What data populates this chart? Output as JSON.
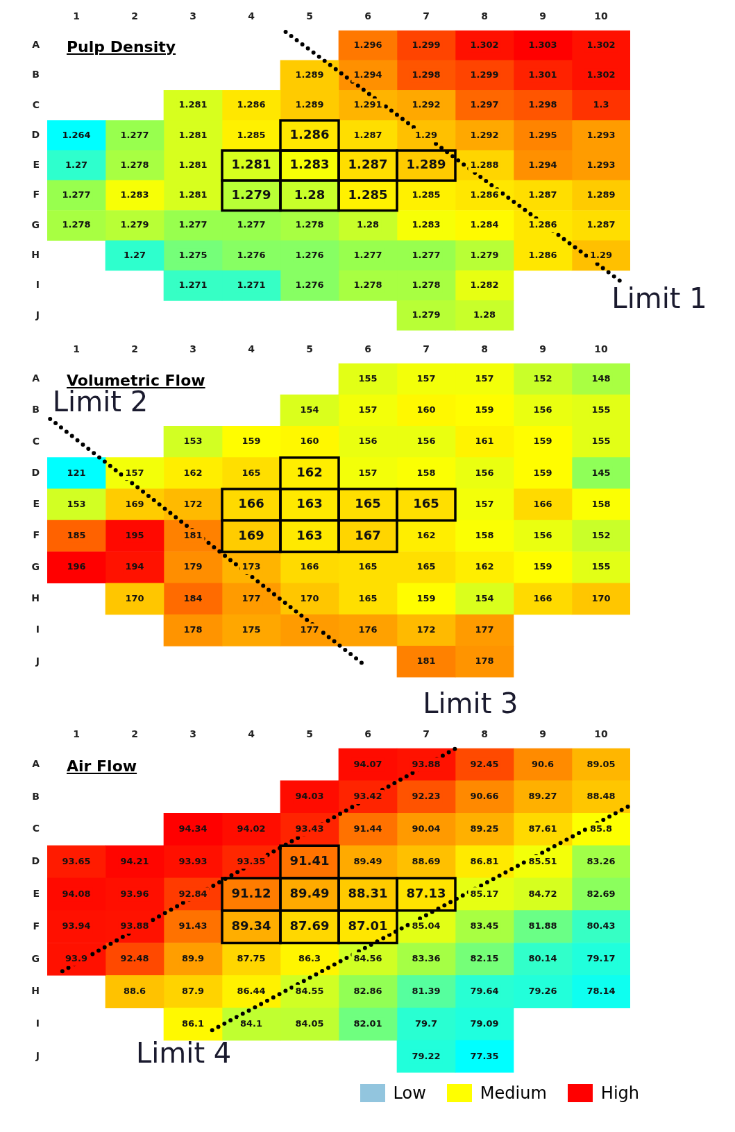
{
  "chart_data": [
    {
      "type": "heatmap",
      "title": "Pulp Density",
      "data_labels": true,
      "categories": [
        "1",
        "2",
        "3",
        "4",
        "5",
        "6",
        "7",
        "8",
        "9",
        "10"
      ],
      "y_categories": [
        "A",
        "B",
        "C",
        "D",
        "E",
        "F",
        "G",
        "H",
        "I",
        "J"
      ],
      "cells": [
        [
          null,
          null,
          null,
          null,
          null,
          1.296,
          1.299,
          1.302,
          1.303,
          1.302
        ],
        [
          null,
          null,
          null,
          null,
          1.289,
          1.294,
          1.298,
          1.299,
          1.301,
          1.302
        ],
        [
          null,
          null,
          1.281,
          1.286,
          1.289,
          1.291,
          1.292,
          1.297,
          1.298,
          1.3
        ],
        [
          1.264,
          1.277,
          1.281,
          1.285,
          1.286,
          1.287,
          1.29,
          1.292,
          1.295,
          1.293
        ],
        [
          1.27,
          1.278,
          1.281,
          1.281,
          1.283,
          1.287,
          1.289,
          1.288,
          1.294,
          1.293
        ],
        [
          1.277,
          1.283,
          1.281,
          1.279,
          1.28,
          1.285,
          1.285,
          1.286,
          1.287,
          1.289
        ],
        [
          1.278,
          1.279,
          1.277,
          1.277,
          1.278,
          1.28,
          1.283,
          1.284,
          1.286,
          1.287
        ],
        [
          null,
          1.27,
          1.275,
          1.276,
          1.276,
          1.277,
          1.277,
          1.279,
          1.286,
          1.29
        ],
        [
          null,
          null,
          1.271,
          1.271,
          1.276,
          1.278,
          1.278,
          1.282,
          null,
          null
        ],
        [
          null,
          null,
          null,
          null,
          null,
          null,
          1.279,
          1.28,
          null,
          null
        ]
      ],
      "annotations": [
        "Limit 1"
      ]
    },
    {
      "type": "heatmap",
      "title": "Volumetric Flow",
      "data_labels": true,
      "categories": [
        "1",
        "2",
        "3",
        "4",
        "5",
        "6",
        "7",
        "8",
        "9",
        "10"
      ],
      "y_categories": [
        "A",
        "B",
        "C",
        "D",
        "E",
        "F",
        "G",
        "H",
        "I",
        "J"
      ],
      "cells": [
        [
          null,
          null,
          null,
          null,
          null,
          155,
          157,
          157,
          152,
          148
        ],
        [
          null,
          null,
          null,
          null,
          154,
          157,
          160,
          159,
          156,
          155
        ],
        [
          null,
          null,
          153,
          159,
          160,
          156,
          156,
          161,
          159,
          155
        ],
        [
          121,
          157,
          162,
          165,
          162,
          157,
          158,
          156,
          159,
          145
        ],
        [
          153,
          169,
          172,
          166,
          163,
          165,
          165,
          157,
          166,
          158
        ],
        [
          185,
          195,
          181,
          169,
          163,
          167,
          162,
          158,
          156,
          152
        ],
        [
          196,
          194,
          179,
          173,
          166,
          165,
          165,
          162,
          159,
          155
        ],
        [
          null,
          170,
          184,
          177,
          170,
          165,
          159,
          154,
          166,
          170
        ],
        [
          null,
          null,
          178,
          175,
          177,
          176,
          172,
          177,
          null,
          null
        ],
        [
          null,
          null,
          null,
          null,
          null,
          null,
          181,
          178,
          null,
          null
        ]
      ],
      "annotations": [
        "Limit 2"
      ]
    },
    {
      "type": "heatmap",
      "title": "Air Flow",
      "data_labels": true,
      "categories": [
        "1",
        "2",
        "3",
        "4",
        "5",
        "6",
        "7",
        "8",
        "9",
        "10"
      ],
      "y_categories": [
        "A",
        "B",
        "C",
        "D",
        "E",
        "F",
        "G",
        "H",
        "I",
        "J"
      ],
      "cells": [
        [
          null,
          null,
          null,
          null,
          null,
          94.07,
          93.88,
          92.45,
          90.6,
          89.05
        ],
        [
          null,
          null,
          null,
          null,
          94.03,
          93.42,
          92.23,
          90.66,
          89.27,
          88.48
        ],
        [
          null,
          null,
          94.34,
          94.02,
          93.43,
          91.44,
          90.04,
          89.25,
          87.61,
          85.8
        ],
        [
          93.65,
          94.21,
          93.93,
          93.35,
          91.41,
          89.49,
          88.69,
          86.81,
          85.51,
          83.26
        ],
        [
          94.08,
          93.96,
          92.84,
          91.12,
          89.49,
          88.31,
          87.13,
          85.17,
          84.72,
          82.69
        ],
        [
          93.94,
          93.88,
          91.43,
          89.34,
          87.69,
          87.01,
          85.04,
          83.45,
          81.88,
          80.43
        ],
        [
          93.9,
          92.48,
          89.9,
          87.75,
          86.3,
          84.56,
          83.36,
          82.15,
          80.14,
          79.17
        ],
        [
          null,
          88.6,
          87.9,
          86.44,
          84.55,
          82.86,
          81.39,
          79.64,
          79.26,
          78.14
        ],
        [
          null,
          null,
          86.1,
          84.1,
          84.05,
          82.01,
          79.7,
          79.09,
          null,
          null
        ],
        [
          null,
          null,
          null,
          null,
          null,
          null,
          79.22,
          77.35,
          null,
          null
        ]
      ],
      "annotations": [
        "Limit 3",
        "Limit 4",
        "Low",
        "Medium",
        "High"
      ]
    }
  ]
}
